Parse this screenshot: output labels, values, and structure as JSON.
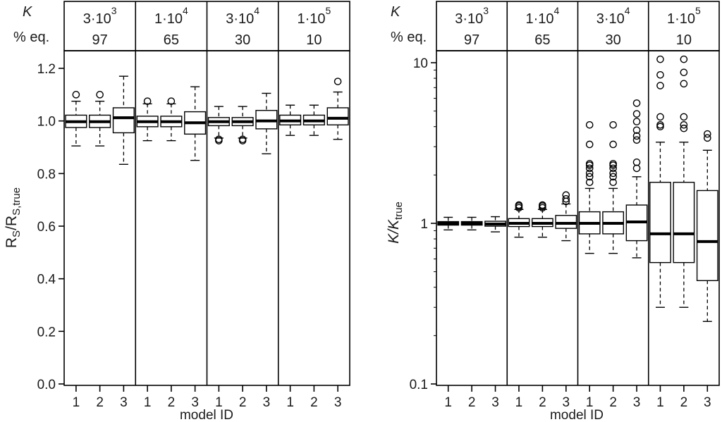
{
  "chart_data": [
    {
      "type": "box",
      "header_labels": {
        "k": "K",
        "eq": "% eq."
      },
      "groups": [
        {
          "k_base": "3·10",
          "k_exp": "3",
          "eq": "97"
        },
        {
          "k_base": "1·10",
          "k_exp": "4",
          "eq": "65"
        },
        {
          "k_base": "3·10",
          "k_exp": "4",
          "eq": "30"
        },
        {
          "k_base": "1·10",
          "k_exp": "5",
          "eq": "10"
        }
      ],
      "ylabel": {
        "main": "R",
        "sub1": "S",
        "mid": "/R",
        "sub2": "S,true"
      },
      "xlabel": "model ID",
      "ylim": [
        0,
        1.25
      ],
      "yticks": [
        "0.0",
        "0.2",
        "0.4",
        "0.6",
        "0.8",
        "1.0",
        "1.2"
      ],
      "boxes": [
        {
          "group": 0,
          "model": "1",
          "whisker_low": 0.905,
          "q1": 0.975,
          "median": 0.997,
          "q3": 1.022,
          "whisker_high": 1.075,
          "outliers": [
            1.1
          ]
        },
        {
          "group": 0,
          "model": "2",
          "whisker_low": 0.905,
          "q1": 0.975,
          "median": 0.997,
          "q3": 1.022,
          "whisker_high": 1.075,
          "outliers": [
            1.1
          ]
        },
        {
          "group": 0,
          "model": "3",
          "whisker_low": 0.835,
          "q1": 0.955,
          "median": 1.012,
          "q3": 1.05,
          "whisker_high": 1.17,
          "outliers": []
        },
        {
          "group": 1,
          "model": "1",
          "whisker_low": 0.925,
          "q1": 0.978,
          "median": 0.997,
          "q3": 1.018,
          "whisker_high": 1.065,
          "outliers": [
            1.075
          ]
        },
        {
          "group": 1,
          "model": "2",
          "whisker_low": 0.925,
          "q1": 0.978,
          "median": 0.997,
          "q3": 1.018,
          "whisker_high": 1.065,
          "outliers": [
            1.075
          ]
        },
        {
          "group": 1,
          "model": "3",
          "whisker_low": 0.85,
          "q1": 0.95,
          "median": 0.993,
          "q3": 1.035,
          "whisker_high": 1.13,
          "outliers": []
        },
        {
          "group": 2,
          "model": "1",
          "whisker_low": 0.935,
          "q1": 0.982,
          "median": 0.997,
          "q3": 1.013,
          "whisker_high": 1.055,
          "outliers": [
            0.925,
            0.93
          ]
        },
        {
          "group": 2,
          "model": "2",
          "whisker_low": 0.935,
          "q1": 0.982,
          "median": 0.997,
          "q3": 1.013,
          "whisker_high": 1.055,
          "outliers": [
            0.925,
            0.93
          ]
        },
        {
          "group": 2,
          "model": "3",
          "whisker_low": 0.875,
          "q1": 0.97,
          "median": 1.0,
          "q3": 1.04,
          "whisker_high": 1.105,
          "outliers": []
        },
        {
          "group": 3,
          "model": "1",
          "whisker_low": 0.945,
          "q1": 0.985,
          "median": 1.0,
          "q3": 1.022,
          "whisker_high": 1.06,
          "outliers": []
        },
        {
          "group": 3,
          "model": "2",
          "whisker_low": 0.945,
          "q1": 0.985,
          "median": 1.0,
          "q3": 1.022,
          "whisker_high": 1.06,
          "outliers": []
        },
        {
          "group": 3,
          "model": "3",
          "whisker_low": 0.93,
          "q1": 0.985,
          "median": 1.01,
          "q3": 1.05,
          "whisker_high": 1.11,
          "outliers": [
            1.15
          ]
        }
      ]
    },
    {
      "type": "box",
      "scale": "log",
      "header_labels": {
        "k": "K",
        "eq": "% eq."
      },
      "groups": [
        {
          "k_base": "3·10",
          "k_exp": "3",
          "eq": "97"
        },
        {
          "k_base": "1·10",
          "k_exp": "4",
          "eq": "65"
        },
        {
          "k_base": "3·10",
          "k_exp": "4",
          "eq": "30"
        },
        {
          "k_base": "1·10",
          "k_exp": "5",
          "eq": "10"
        }
      ],
      "ylabel": {
        "main": "K",
        "mid": "/K",
        "sub": "true"
      },
      "xlabel": "model ID",
      "ylim": [
        0.1,
        12
      ],
      "yticks": [
        "0.1",
        "1",
        "10"
      ],
      "boxes": [
        {
          "group": 0,
          "model": "1",
          "whisker_low": 0.91,
          "q1": 0.975,
          "median": 1.0,
          "q3": 1.025,
          "whisker_high": 1.09,
          "outliers": []
        },
        {
          "group": 0,
          "model": "2",
          "whisker_low": 0.91,
          "q1": 0.975,
          "median": 1.0,
          "q3": 1.025,
          "whisker_high": 1.09,
          "outliers": []
        },
        {
          "group": 0,
          "model": "3",
          "whisker_low": 0.885,
          "q1": 0.96,
          "median": 0.99,
          "q3": 1.03,
          "whisker_high": 1.1,
          "outliers": []
        },
        {
          "group": 1,
          "model": "1",
          "whisker_low": 0.82,
          "q1": 0.955,
          "median": 1.0,
          "q3": 1.07,
          "whisker_high": 1.22,
          "outliers": [
            1.25,
            1.28,
            1.3
          ]
        },
        {
          "group": 1,
          "model": "2",
          "whisker_low": 0.82,
          "q1": 0.955,
          "median": 1.0,
          "q3": 1.07,
          "whisker_high": 1.22,
          "outliers": [
            1.25,
            1.28,
            1.3
          ]
        },
        {
          "group": 1,
          "model": "3",
          "whisker_low": 0.78,
          "q1": 0.93,
          "median": 1.0,
          "q3": 1.12,
          "whisker_high": 1.32,
          "outliers": [
            1.37,
            1.42,
            1.5
          ]
        },
        {
          "group": 2,
          "model": "1",
          "whisker_low": 0.65,
          "q1": 0.86,
          "median": 1.0,
          "q3": 1.18,
          "whisker_high": 1.65,
          "outliers": [
            1.8,
            1.95,
            2.05,
            2.2,
            2.3,
            2.35,
            3.1,
            4.1
          ]
        },
        {
          "group": 2,
          "model": "2",
          "whisker_low": 0.65,
          "q1": 0.86,
          "median": 1.0,
          "q3": 1.18,
          "whisker_high": 1.65,
          "outliers": [
            1.8,
            1.95,
            2.05,
            2.2,
            2.3,
            2.35,
            3.1,
            4.1
          ]
        },
        {
          "group": 2,
          "model": "3",
          "whisker_low": 0.61,
          "q1": 0.78,
          "median": 1.02,
          "q3": 1.3,
          "whisker_high": 1.95,
          "outliers": [
            2.2,
            2.4,
            3.3,
            3.5,
            3.8,
            4.3,
            4.8,
            5.6
          ]
        },
        {
          "group": 3,
          "model": "1",
          "whisker_low": 0.3,
          "q1": 0.57,
          "median": 0.86,
          "q3": 1.8,
          "whisker_high": 3.2,
          "outliers": [
            4.0,
            4.1,
            4.6,
            7.2,
            8.4,
            10.5
          ]
        },
        {
          "group": 3,
          "model": "2",
          "whisker_low": 0.3,
          "q1": 0.57,
          "median": 0.86,
          "q3": 1.8,
          "whisker_high": 3.2,
          "outliers": [
            3.9,
            4.1,
            4.6,
            7.4,
            8.7,
            10.5
          ]
        },
        {
          "group": 3,
          "model": "3",
          "whisker_low": 0.245,
          "q1": 0.44,
          "median": 0.77,
          "q3": 1.6,
          "whisker_high": 2.85,
          "outliers": [
            3.4,
            3.6
          ]
        }
      ]
    }
  ]
}
